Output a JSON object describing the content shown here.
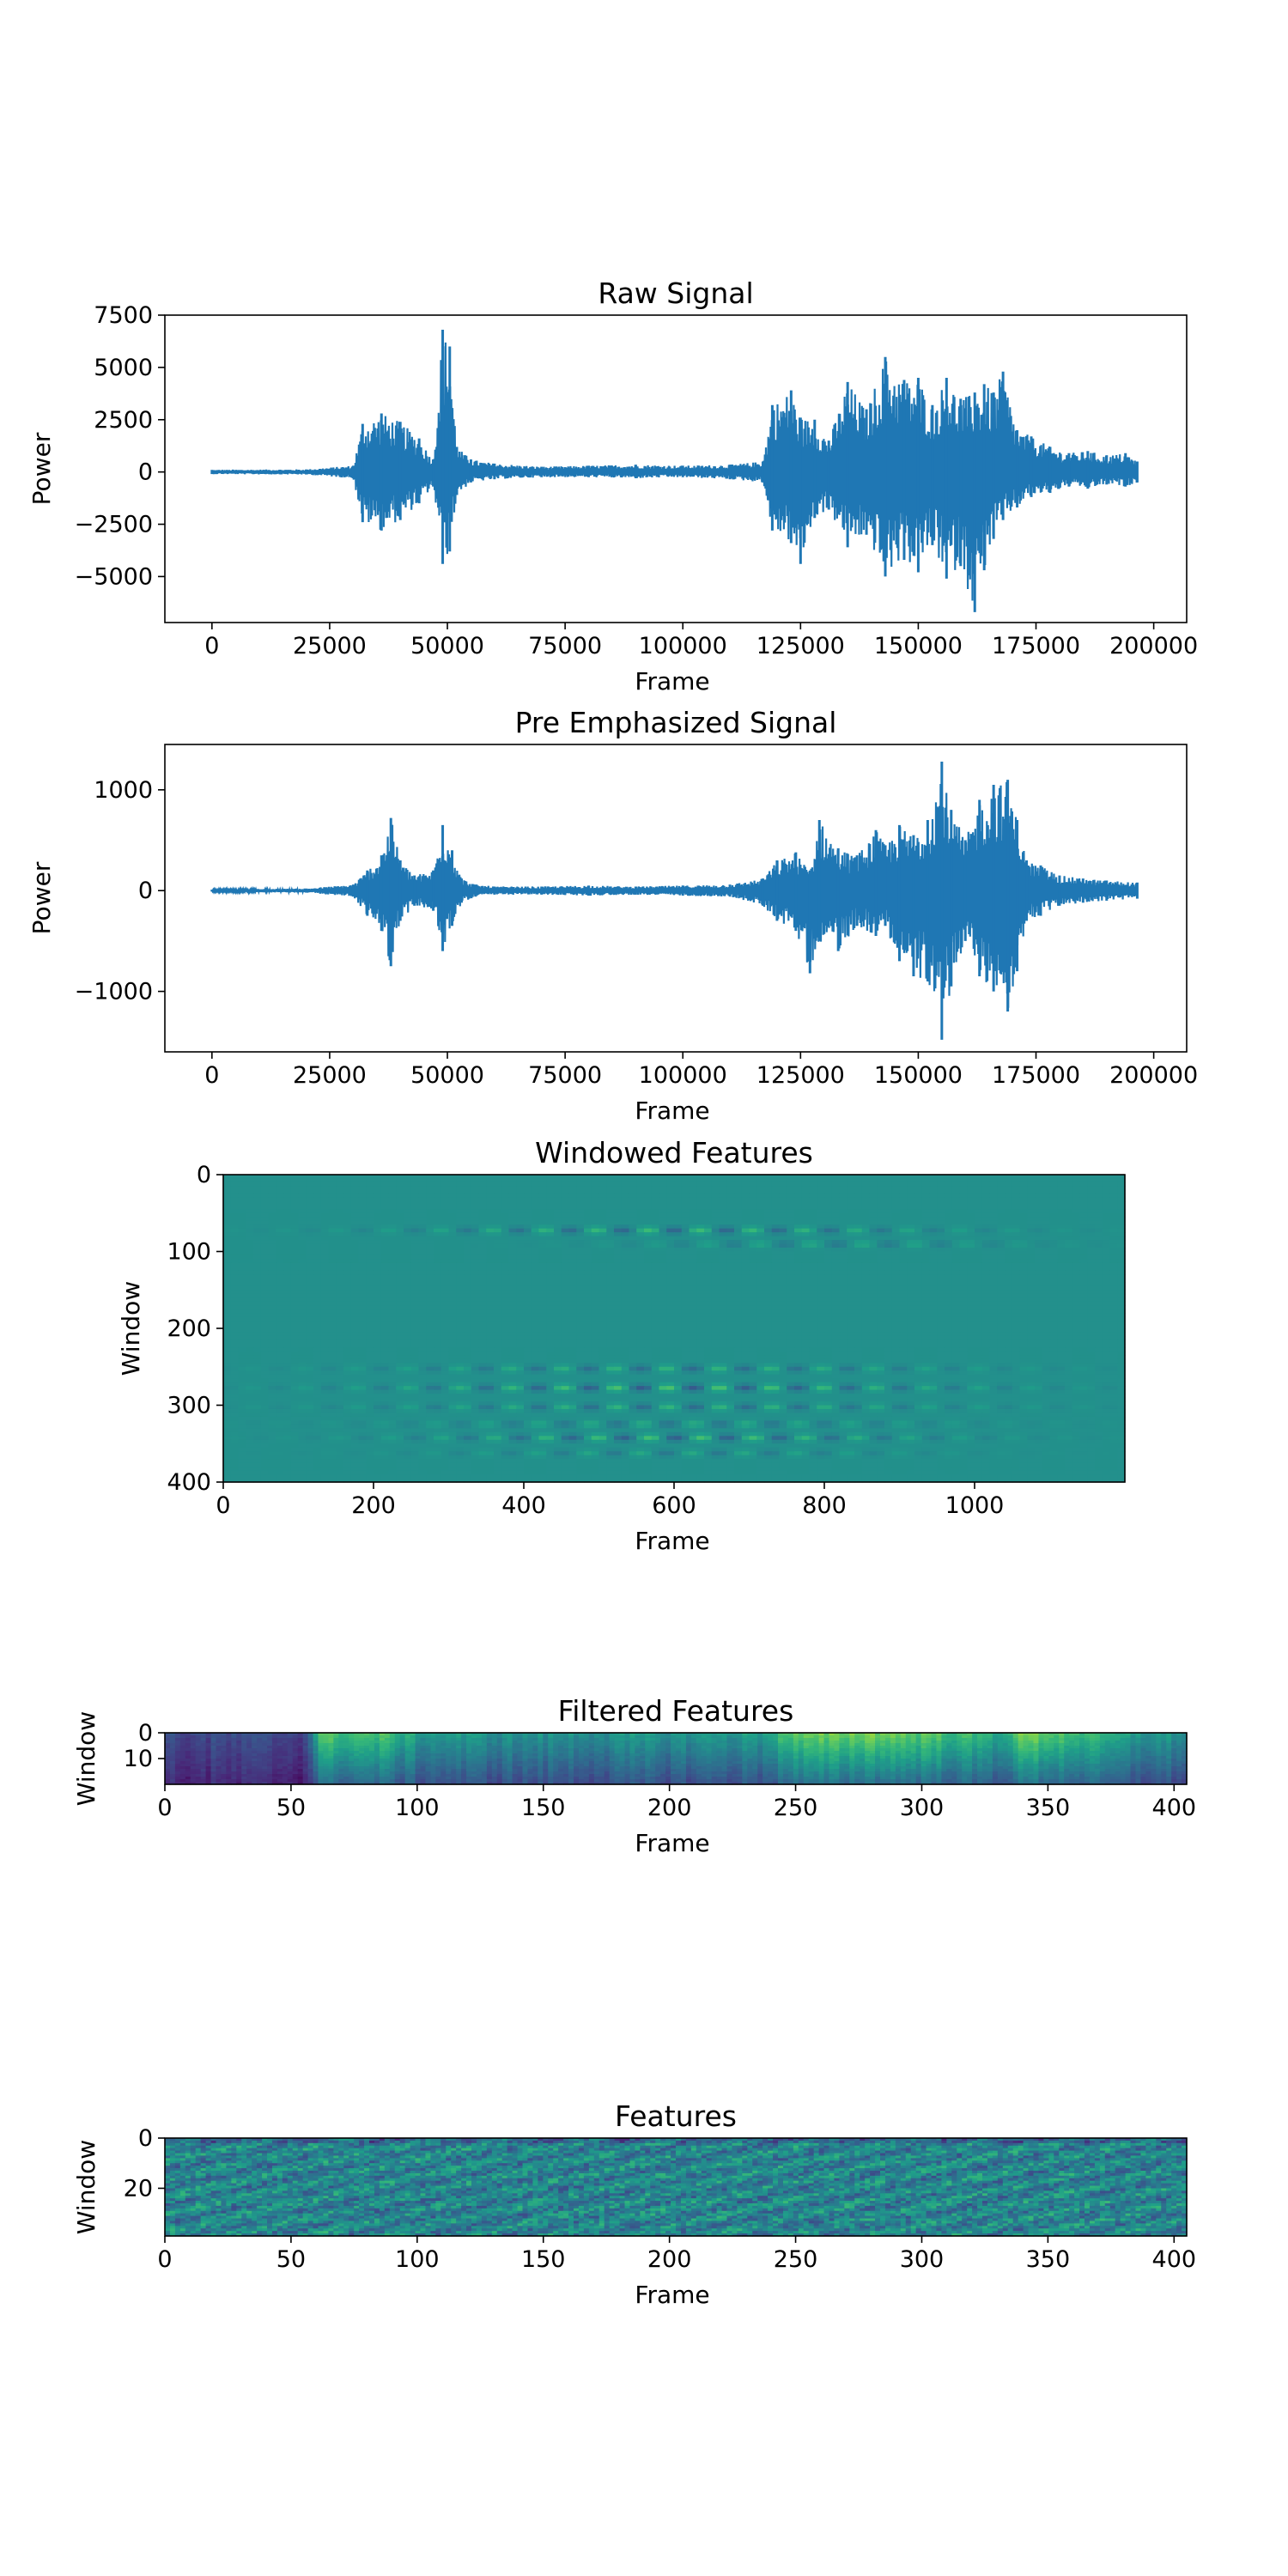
{
  "chart_data": [
    {
      "type": "line",
      "title": "Raw Signal",
      "xlabel": "Frame",
      "ylabel": "Power",
      "xlim": [
        -10000,
        207000
      ],
      "ylim": [
        -7200,
        7500
      ],
      "xticks": [
        0,
        25000,
        50000,
        75000,
        100000,
        125000,
        150000,
        175000,
        200000
      ],
      "yticks": [
        -5000,
        -2500,
        0,
        2500,
        5000,
        7500
      ],
      "ytick_labels": [
        "−5000",
        "−2500",
        "0",
        "2500",
        "5000",
        "7500"
      ],
      "color": "#1f77b4",
      "grid": false,
      "envelope": {
        "x": [
          0,
          20000,
          30000,
          32000,
          36000,
          40000,
          44000,
          47000,
          49000,
          50500,
          52000,
          55000,
          60000,
          70000,
          80000,
          90000,
          100000,
          110000,
          117000,
          119000,
          123000,
          125000,
          128000,
          131000,
          135000,
          139000,
          143000,
          147000,
          150000,
          153000,
          156000,
          159000,
          162000,
          164000,
          166000,
          168000,
          171000,
          174000,
          178000,
          182000,
          186000,
          190000,
          194000,
          196500
        ],
        "upper": [
          100,
          120,
          300,
          2300,
          2800,
          2400,
          1600,
          600,
          6800,
          6000,
          1200,
          600,
          400,
          250,
          300,
          350,
          300,
          350,
          500,
          3200,
          3900,
          2600,
          2500,
          1500,
          4300,
          3000,
          5500,
          4400,
          4500,
          3200,
          4500,
          3500,
          3800,
          4200,
          3800,
          4800,
          2000,
          1700,
          1200,
          900,
          1000,
          800,
          900,
          500
        ],
        "lower": [
          -100,
          -120,
          -300,
          -2400,
          -2800,
          -2300,
          -1500,
          -700,
          -4400,
          -3800,
          -1100,
          -500,
          -350,
          -250,
          -250,
          -300,
          -250,
          -350,
          -500,
          -2800,
          -3400,
          -4400,
          -2200,
          -1800,
          -3600,
          -3000,
          -5000,
          -4200,
          -4800,
          -3500,
          -5100,
          -4500,
          -6700,
          -4700,
          -3200,
          -2300,
          -1700,
          -1200,
          -1000,
          -700,
          -800,
          -600,
          -700,
          -500
        ]
      }
    },
    {
      "type": "line",
      "title": "Pre Emphasized Signal",
      "xlabel": "Frame",
      "ylabel": "Power",
      "xlim": [
        -10000,
        207000
      ],
      "ylim": [
        -1600,
        1450
      ],
      "xticks": [
        0,
        25000,
        50000,
        75000,
        100000,
        125000,
        150000,
        175000,
        200000
      ],
      "yticks": [
        -1000,
        0,
        1000
      ],
      "ytick_labels": [
        "−1000",
        "0",
        "1000"
      ],
      "color": "#1f77b4",
      "grid": false,
      "envelope": {
        "x": [
          0,
          20000,
          30000,
          33000,
          36000,
          38000,
          40000,
          43000,
          47000,
          49000,
          51000,
          53000,
          56000,
          60000,
          70000,
          80000,
          90000,
          100000,
          110000,
          117000,
          120000,
          124000,
          127000,
          129000,
          133000,
          137000,
          141000,
          143000,
          146000,
          149000,
          152000,
          155000,
          157000,
          160000,
          163000,
          166000,
          169000,
          171000,
          173000,
          176000,
          180000,
          185000,
          190000,
          196500
        ],
        "upper": [
          10,
          20,
          60,
          200,
          350,
          720,
          300,
          150,
          200,
          650,
          400,
          120,
          60,
          40,
          40,
          50,
          40,
          50,
          60,
          120,
          300,
          380,
          200,
          700,
          420,
          350,
          600,
          450,
          650,
          550,
          700,
          1280,
          800,
          500,
          900,
          1050,
          1100,
          700,
          300,
          250,
          150,
          120,
          100,
          80
        ],
        "lower": [
          -10,
          -20,
          -60,
          -250,
          -400,
          -750,
          -300,
          -150,
          -200,
          -600,
          -350,
          -120,
          -60,
          -40,
          -40,
          -50,
          -40,
          -50,
          -60,
          -150,
          -300,
          -400,
          -820,
          -500,
          -600,
          -350,
          -450,
          -350,
          -700,
          -850,
          -900,
          -1480,
          -950,
          -500,
          -850,
          -1000,
          -1200,
          -800,
          -300,
          -250,
          -150,
          -120,
          -100,
          -80
        ]
      }
    },
    {
      "type": "heatmap",
      "title": "Windowed Features",
      "xlabel": "Frame",
      "ylabel": "Window",
      "xlim": [
        0,
        1200
      ],
      "ylim": [
        400,
        0
      ],
      "xticks": [
        0,
        200,
        400,
        600,
        800,
        1000
      ],
      "yticks": [
        0,
        100,
        200,
        300,
        400
      ],
      "colormap": "viridis",
      "base_value": 0.5,
      "bands": [
        {
          "row": 70,
          "x_center": 600,
          "x_spread": 350,
          "amplitude": 0.18
        },
        {
          "row": 88,
          "x_center": 800,
          "x_spread": 250,
          "amplitude": 0.1
        },
        {
          "row": 250,
          "x_center": 600,
          "x_spread": 380,
          "amplitude": 0.15
        },
        {
          "row": 275,
          "x_center": 600,
          "x_spread": 380,
          "amplitude": 0.22
        },
        {
          "row": 300,
          "x_center": 600,
          "x_spread": 380,
          "amplitude": 0.15
        },
        {
          "row": 322,
          "x_center": 600,
          "x_spread": 350,
          "amplitude": 0.12
        },
        {
          "row": 340,
          "x_center": 600,
          "x_spread": 330,
          "amplitude": 0.2
        },
        {
          "row": 360,
          "x_center": 600,
          "x_spread": 300,
          "amplitude": 0.1
        }
      ]
    },
    {
      "type": "heatmap",
      "title": "Filtered Features",
      "xlabel": "Frame",
      "ylabel": "Window",
      "xlim": [
        0,
        405
      ],
      "ylim": [
        20,
        0
      ],
      "xticks": [
        0,
        50,
        100,
        150,
        200,
        250,
        300,
        350,
        400
      ],
      "yticks": [
        0,
        10
      ],
      "colormap": "viridis",
      "column_profile": [
        {
          "x": 0,
          "level": 0.22
        },
        {
          "x": 55,
          "level": 0.22
        },
        {
          "x": 60,
          "level": 0.72
        },
        {
          "x": 85,
          "level": 0.7
        },
        {
          "x": 100,
          "level": 0.55
        },
        {
          "x": 140,
          "level": 0.5
        },
        {
          "x": 200,
          "level": 0.52
        },
        {
          "x": 235,
          "level": 0.55
        },
        {
          "x": 245,
          "level": 0.72
        },
        {
          "x": 280,
          "level": 0.8
        },
        {
          "x": 300,
          "level": 0.75
        },
        {
          "x": 330,
          "level": 0.6
        },
        {
          "x": 340,
          "level": 0.8
        },
        {
          "x": 360,
          "level": 0.7
        },
        {
          "x": 380,
          "level": 0.55
        },
        {
          "x": 405,
          "level": 0.5
        }
      ]
    },
    {
      "type": "heatmap",
      "title": "Features",
      "xlabel": "Frame",
      "ylabel": "Window",
      "xlim": [
        0,
        405
      ],
      "ylim": [
        39,
        0
      ],
      "xticks": [
        0,
        50,
        100,
        150,
        200,
        250,
        300,
        350,
        400
      ],
      "yticks": [
        0,
        20
      ],
      "colormap": "viridis",
      "base_value": 0.45
    }
  ]
}
